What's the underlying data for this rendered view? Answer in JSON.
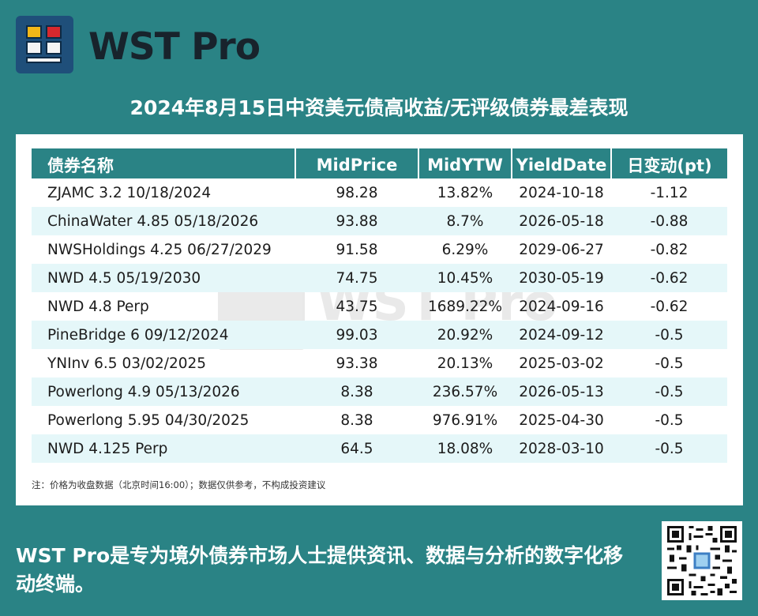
{
  "brand": {
    "name": "WST Pro"
  },
  "title": "2024年8月15日中资美元债高收益/无评级债券最差表现",
  "watermark": "WST Pro",
  "table": {
    "columns": [
      "债券名称",
      "MidPrice",
      "MidYTW",
      "YieldDate",
      "日变动(pt)"
    ],
    "rows": [
      [
        "ZJAMC 3.2 10/18/2024",
        "98.28",
        "13.82%",
        "2024-10-18",
        "-1.12"
      ],
      [
        "ChinaWater 4.85 05/18/2026",
        "93.88",
        "8.7%",
        "2026-05-18",
        "-0.88"
      ],
      [
        "NWSHoldings 4.25 06/27/2029",
        "91.58",
        "6.29%",
        "2029-06-27",
        "-0.82"
      ],
      [
        "NWD 4.5 05/19/2030",
        "74.75",
        "10.45%",
        "2030-05-19",
        "-0.62"
      ],
      [
        "NWD 4.8 Perp",
        "43.75",
        "1689.22%",
        "2024-09-16",
        "-0.62"
      ],
      [
        "PineBridge 6 09/12/2024",
        "99.03",
        "20.92%",
        "2024-09-12",
        "-0.5"
      ],
      [
        "YNInv 6.5 03/02/2025",
        "93.38",
        "20.13%",
        "2025-03-02",
        "-0.5"
      ],
      [
        "Powerlong 4.9 05/13/2026",
        "8.38",
        "236.57%",
        "2026-05-13",
        "-0.5"
      ],
      [
        "Powerlong 5.95 04/30/2025",
        "8.38",
        "976.91%",
        "2025-04-30",
        "-0.5"
      ],
      [
        "NWD 4.125 Perp",
        "64.5",
        "18.08%",
        "2028-03-10",
        "-0.5"
      ]
    ]
  },
  "note": "注：价格为收盘数据（北京时间16:00）；数据仅供参考，不构成投资建议",
  "footer": {
    "tagline": "WST Pro是专为境外债券市场人士提供资讯、数据与分析的数字化移动终端。",
    "qr_icon": "qr-code-icon"
  },
  "colors": {
    "background": "#2a8385",
    "row_alt": "#e5f7f9",
    "brand_dark": "#1f4f7a"
  }
}
